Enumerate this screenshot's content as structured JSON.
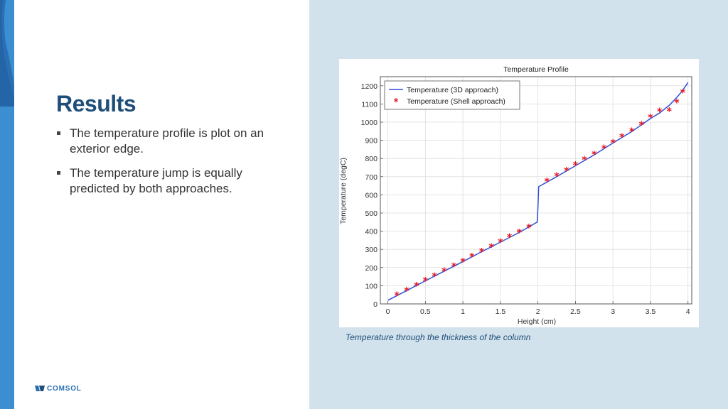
{
  "slide": {
    "title": "Results",
    "bullets": [
      "The temperature profile is plot on an exterior edge.",
      "The temperature jump is equally predicted by both approaches."
    ],
    "caption": "Temperature through the thickness of the column",
    "logo_text": "COMSOL"
  },
  "colors": {
    "title": "#1f4e79",
    "right_panel": "#d2e2ec",
    "side_strip": "#3b8fd0",
    "line_series": "#2e4fd6",
    "marker_series": "#e8131b"
  },
  "chart_data": {
    "type": "line",
    "title": "Temperature Profile",
    "xlabel": "Height (cm)",
    "ylabel": "Temperature (degC)",
    "xlim": [
      -0.1,
      4.05
    ],
    "ylim": [
      0,
      1250
    ],
    "xticks": [
      0,
      0.5,
      1,
      1.5,
      2,
      2.5,
      3,
      3.5,
      4
    ],
    "xtick_labels": [
      "0",
      "0.5",
      "1",
      "1.5",
      "2",
      "2.5",
      "3",
      "3.5",
      "4"
    ],
    "yticks": [
      0,
      100,
      200,
      300,
      400,
      500,
      600,
      700,
      800,
      900,
      1000,
      1100,
      1200
    ],
    "yticks_labels": [
      "0",
      "100",
      "200",
      "300",
      "400",
      "500",
      "600",
      "700",
      "800",
      "900",
      "1000",
      "1100",
      "1200"
    ],
    "grid": true,
    "legend": "top-left",
    "series": [
      {
        "name": "Temperature (3D approach)",
        "style": "line",
        "x": [
          0,
          0.25,
          0.5,
          0.75,
          1.0,
          1.25,
          1.5,
          1.75,
          1.99,
          2.0,
          2.01,
          2.25,
          2.5,
          2.75,
          3.0,
          3.25,
          3.5,
          3.62,
          3.75,
          3.85,
          3.93,
          4.0
        ],
        "y": [
          20,
          73,
          127,
          180,
          233,
          287,
          340,
          393,
          450,
          525,
          645,
          700,
          760,
          820,
          885,
          948,
          1020,
          1050,
          1092,
          1135,
          1175,
          1218
        ]
      },
      {
        "name": "Temperature (Shell approach)",
        "style": "markers",
        "x": [
          0.12,
          0.25,
          0.38,
          0.5,
          0.62,
          0.75,
          0.88,
          1.0,
          1.12,
          1.25,
          1.38,
          1.5,
          1.62,
          1.75,
          1.88,
          2.12,
          2.25,
          2.38,
          2.5,
          2.62,
          2.75,
          2.88,
          3.0,
          3.12,
          3.25,
          3.38,
          3.5,
          3.62,
          3.75,
          3.85,
          3.93
        ],
        "y": [
          47,
          73,
          100,
          127,
          153,
          180,
          207,
          233,
          260,
          287,
          313,
          340,
          367,
          393,
          420,
          673,
          703,
          733,
          763,
          793,
          823,
          855,
          887,
          918,
          950,
          985,
          1025,
          1058,
          1060,
          1108,
          1162
        ]
      }
    ]
  }
}
